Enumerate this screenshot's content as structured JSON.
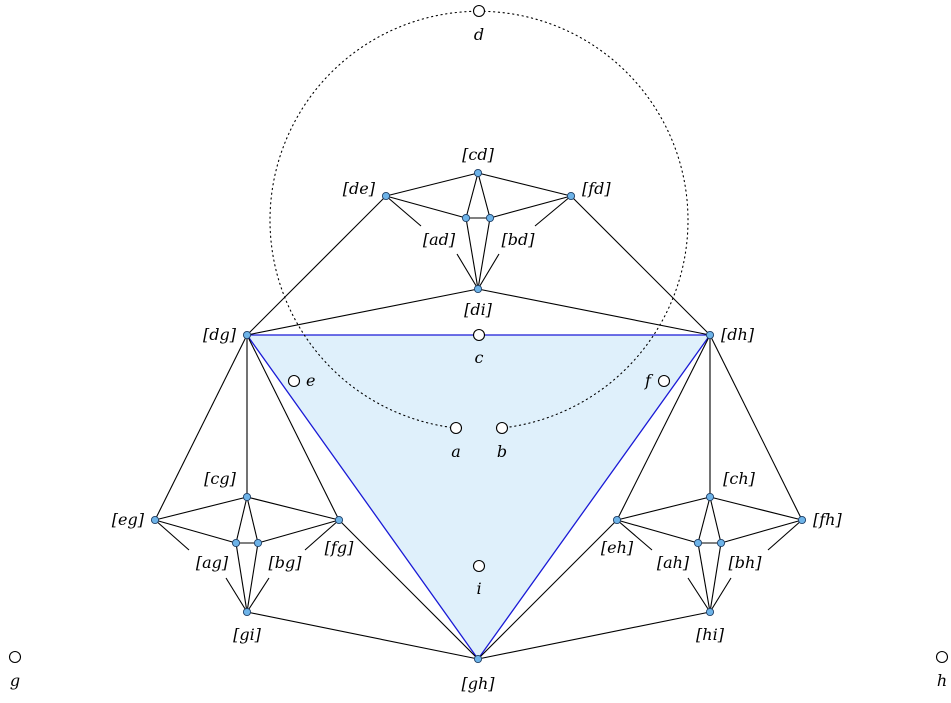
{
  "diagram": {
    "sites": [
      {
        "id": "a",
        "label": "a"
      },
      {
        "id": "b",
        "label": "b"
      },
      {
        "id": "c",
        "label": "c"
      },
      {
        "id": "d",
        "label": "d"
      },
      {
        "id": "e",
        "label": "e"
      },
      {
        "id": "f",
        "label": "f"
      },
      {
        "id": "g",
        "label": "g"
      },
      {
        "id": "h",
        "label": "h"
      },
      {
        "id": "i",
        "label": "i"
      }
    ],
    "vertex_labels": {
      "cd": "[cd]",
      "de": "[de]",
      "fd": "[fd]",
      "ad": "[ad]",
      "bd": "[bd]",
      "di": "[di]",
      "dg": "[dg]",
      "dh": "[dh]",
      "cg": "[cg]",
      "eg": "[eg]",
      "ag": "[ag]",
      "bg": "[bg]",
      "fg": "[fg]",
      "gi": "[gi]",
      "ch": "[ch]",
      "eh": "[eh]",
      "ah": "[ah]",
      "bh": "[bh]",
      "fh": "[fh]",
      "hi": "[hi]",
      "gh": "[gh]"
    },
    "colors": {
      "vertex_fill": "#6db3e8",
      "triangle_fill": "#dff0fb",
      "triangle_stroke": "#1a1ad6"
    }
  }
}
